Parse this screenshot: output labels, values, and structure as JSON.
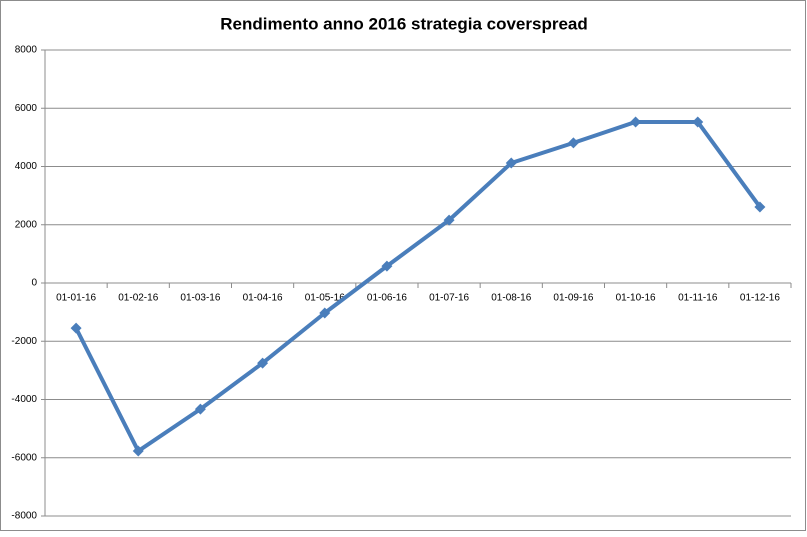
{
  "chart_data": {
    "type": "line",
    "title": "Rendimento anno 2016 strategia coverspread",
    "categories": [
      "01-01-16",
      "01-02-16",
      "01-03-16",
      "01-04-16",
      "01-05-16",
      "01-06-16",
      "01-07-16",
      "01-08-16",
      "01-09-16",
      "01-10-16",
      "01-11-16",
      "01-12-16"
    ],
    "series": [
      {
        "color": "#4a7ebb",
        "values": [
          -1550,
          -5770,
          -4330,
          -2750,
          -1030,
          580,
          2160,
          4120,
          4810,
          5530,
          5530,
          2610
        ]
      }
    ],
    "ylim": [
      -8000,
      8000
    ],
    "yticks": [
      -8000,
      -6000,
      -4000,
      -2000,
      0,
      2000,
      4000,
      6000,
      8000
    ],
    "grid": true
  }
}
